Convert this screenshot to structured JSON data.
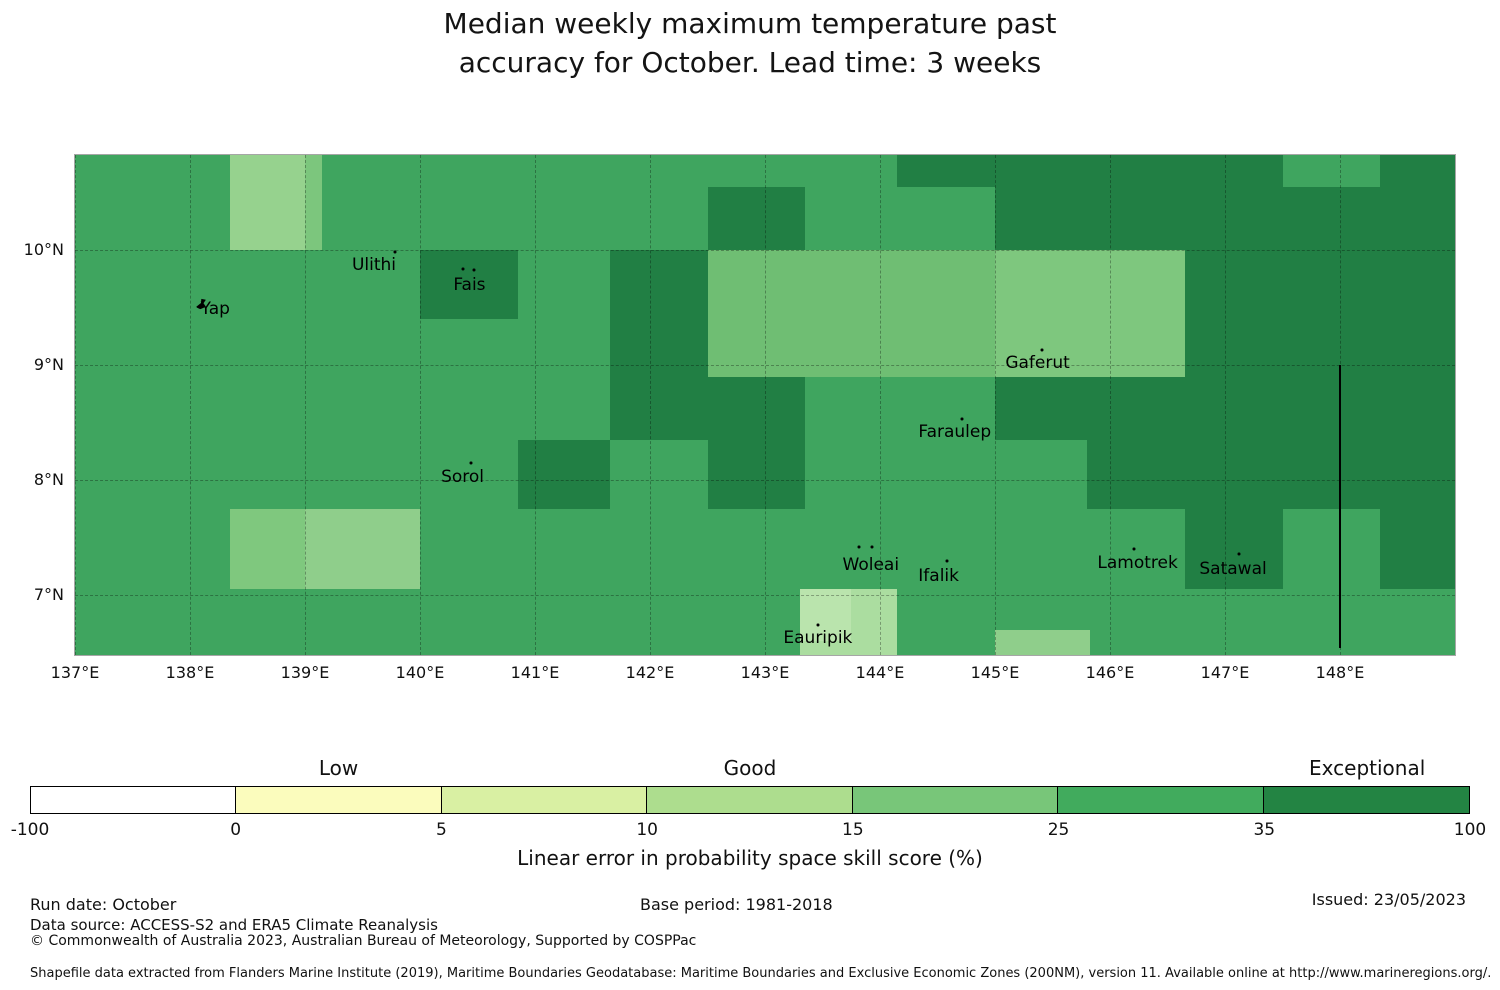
{
  "title": {
    "line1": "Median weekly maximum temperature past",
    "line2": "accuracy for October. Lead time: 3 weeks"
  },
  "chart_data": {
    "type": "heatmap",
    "projection": "lonlat",
    "lon_range": [
      137,
      149
    ],
    "lat_range": [
      6.48,
      10.83
    ],
    "grid_on": true,
    "gridline_color": "rgba(0,0,0,0.30)",
    "base_color": "#3FA55F",
    "base_category": "25-35",
    "x_ticks": [
      {
        "lon": 137,
        "label": "137°E"
      },
      {
        "lon": 138,
        "label": "138°E"
      },
      {
        "lon": 139,
        "label": "139°E"
      },
      {
        "lon": 140,
        "label": "140°E"
      },
      {
        "lon": 141,
        "label": "141°E"
      },
      {
        "lon": 142,
        "label": "142°E"
      },
      {
        "lon": 143,
        "label": "143°E"
      },
      {
        "lon": 144,
        "label": "144°E"
      },
      {
        "lon": 145,
        "label": "145°E"
      },
      {
        "lon": 146,
        "label": "146°E"
      },
      {
        "lon": 147,
        "label": "147°E"
      },
      {
        "lon": 148,
        "label": "148°E"
      }
    ],
    "y_ticks": [
      {
        "lat": 10,
        "label": "10°N"
      },
      {
        "lat": 9,
        "label": "9°N"
      },
      {
        "lat": 8,
        "label": "8°N"
      },
      {
        "lat": 7,
        "label": "7°N"
      }
    ],
    "cells": [
      {
        "lon": [
          140.0,
          140.85
        ],
        "lat": [
          9.4,
          10.0
        ],
        "color": "#217F44",
        "category": "35-100"
      },
      {
        "lon": [
          142.5,
          143.35
        ],
        "lat": [
          10.0,
          10.55
        ],
        "color": "#217F44",
        "category": "35-100"
      },
      {
        "lon": [
          144.15,
          145.0
        ],
        "lat": [
          10.55,
          10.83
        ],
        "color": "#217F44",
        "category": "35-100"
      },
      {
        "lon": [
          145.0,
          149.0
        ],
        "lat": [
          10.0,
          10.83
        ],
        "color": "#217F44",
        "category": "35-100"
      },
      {
        "lon": [
          147.5,
          148.35
        ],
        "lat": [
          10.55,
          10.83
        ],
        "color": "#3FA55F",
        "category": "25-35"
      },
      {
        "lon": [
          146.65,
          149.0
        ],
        "lat": [
          8.9,
          10.0
        ],
        "color": "#217F44",
        "category": "35-100"
      },
      {
        "lon": [
          145.0,
          149.0
        ],
        "lat": [
          8.35,
          8.9
        ],
        "color": "#217F44",
        "category": "35-100"
      },
      {
        "lon": [
          145.8,
          149.0
        ],
        "lat": [
          7.75,
          8.35
        ],
        "color": "#217F44",
        "category": "35-100"
      },
      {
        "lon": [
          146.65,
          147.5
        ],
        "lat": [
          7.05,
          7.75
        ],
        "color": "#217F44",
        "category": "35-100"
      },
      {
        "lon": [
          148.35,
          149.0
        ],
        "lat": [
          7.05,
          7.75
        ],
        "color": "#217F44",
        "category": "35-100"
      },
      {
        "lon": [
          141.65,
          142.5
        ],
        "lat": [
          8.35,
          10.0
        ],
        "color": "#217F44",
        "category": "35-100"
      },
      {
        "lon": [
          140.85,
          141.65
        ],
        "lat": [
          7.75,
          8.35
        ],
        "color": "#217F44",
        "category": "35-100"
      },
      {
        "lon": [
          142.5,
          143.35
        ],
        "lat": [
          7.75,
          8.9
        ],
        "color": "#217F44",
        "category": "35-100"
      },
      {
        "lon": [
          142.5,
          145.0
        ],
        "lat": [
          8.9,
          10.0
        ],
        "color": "#6FBE73",
        "category": "15-25"
      },
      {
        "lon": [
          145.0,
          146.65
        ],
        "lat": [
          8.9,
          10.0
        ],
        "color": "#7EC77E",
        "category": "15-25"
      },
      {
        "lon": [
          138.35,
          139.0
        ],
        "lat": [
          10.0,
          10.83
        ],
        "color": "#96D28E",
        "category": "15-25"
      },
      {
        "lon": [
          139.0,
          139.15
        ],
        "lat": [
          10.0,
          10.83
        ],
        "color": "#7CC67D",
        "category": "15-25"
      },
      {
        "lon": [
          138.35,
          139.0
        ],
        "lat": [
          7.05,
          7.75
        ],
        "color": "#7FC87E",
        "category": "15-25"
      },
      {
        "lon": [
          139.0,
          140.0
        ],
        "lat": [
          7.05,
          7.75
        ],
        "color": "#8FCE8B",
        "category": "15-25"
      },
      {
        "lon": [
          143.3,
          144.15
        ],
        "lat": [
          6.48,
          7.05
        ],
        "color": "#ABDDA0",
        "category": "10-15"
      },
      {
        "lon": [
          143.3,
          143.75
        ],
        "lat": [
          6.6,
          7.05
        ],
        "color": "#BAE4AD",
        "category": "10-15"
      },
      {
        "lon": [
          145.0,
          145.83
        ],
        "lat": [
          6.48,
          6.7
        ],
        "color": "#8FCE8B",
        "category": "15-25"
      }
    ],
    "islands": [
      {
        "name": "Yap",
        "label_pos": [
          138.22,
          9.49
        ],
        "dots": [
          [
            138.1,
            9.53
          ]
        ],
        "shape": true
      },
      {
        "name": "Ulithi",
        "label_pos": [
          139.6,
          9.87
        ],
        "dots": [
          [
            139.78,
            9.99
          ]
        ]
      },
      {
        "name": "Fais",
        "label_pos": [
          140.43,
          9.7
        ],
        "dots": [
          [
            140.37,
            9.84
          ],
          [
            140.47,
            9.83
          ]
        ]
      },
      {
        "name": "Sorol",
        "label_pos": [
          140.37,
          8.03
        ],
        "dots": [
          [
            140.44,
            8.15
          ]
        ]
      },
      {
        "name": "Gaferut",
        "label_pos": [
          145.37,
          9.02
        ],
        "dots": [
          [
            145.41,
            9.13
          ]
        ]
      },
      {
        "name": "Faraulep",
        "label_pos": [
          144.65,
          8.42
        ],
        "dots": [
          [
            144.71,
            8.53
          ]
        ]
      },
      {
        "name": "Woleai",
        "label_pos": [
          143.92,
          7.26
        ],
        "dots": [
          [
            143.82,
            7.42
          ],
          [
            143.93,
            7.42
          ]
        ]
      },
      {
        "name": "Ifalik",
        "label_pos": [
          144.51,
          7.17
        ],
        "dots": [
          [
            144.58,
            7.3
          ]
        ]
      },
      {
        "name": "Eauripik",
        "label_pos": [
          143.46,
          6.63
        ],
        "dots": [
          [
            143.46,
            6.74
          ]
        ]
      },
      {
        "name": "Lamotrek",
        "label_pos": [
          146.24,
          7.28
        ],
        "dots": [
          [
            146.21,
            7.4
          ]
        ]
      },
      {
        "name": "Satawal",
        "label_pos": [
          147.07,
          7.23
        ],
        "dots": [
          [
            147.12,
            7.36
          ]
        ]
      }
    ],
    "eez_line": {
      "lon": 148.0,
      "lat": [
        6.54,
        9.0
      ],
      "color": "#000000"
    }
  },
  "colorbar": {
    "boundaries": [
      "-100",
      "0",
      "5",
      "10",
      "15",
      "25",
      "35",
      "100"
    ],
    "colors": [
      "#FFFFFF",
      "#FBFCBD",
      "#D9F0A3",
      "#ADDD8E",
      "#78C679",
      "#41AB5D",
      "#238443"
    ],
    "category_labels": [
      {
        "text": "Low",
        "segment": 1
      },
      {
        "text": "Good",
        "segment": 3
      },
      {
        "text": "Exceptional",
        "segment": 6
      }
    ],
    "title": "Linear error in probability space skill score (%)"
  },
  "footer": {
    "run_date": "Run date: October",
    "data_source": "Data source: ACCESS-S2 and ERA5 Climate Reanalysis",
    "copyright": "© Commonwealth of Australia 2023, Australian Bureau of Meteorology, Supported by COSPPac",
    "base_period": "Base period: 1981-2018",
    "issued": "Issued: 23/05/2023",
    "shapefile_note": "Shapefile data extracted from Flanders Marine Institute (2019), Maritime Boundaries Geodatabase: Maritime Boundaries and Exclusive Economic Zones (200NM), version 11. Available online at http://www.marineregions.org/."
  }
}
